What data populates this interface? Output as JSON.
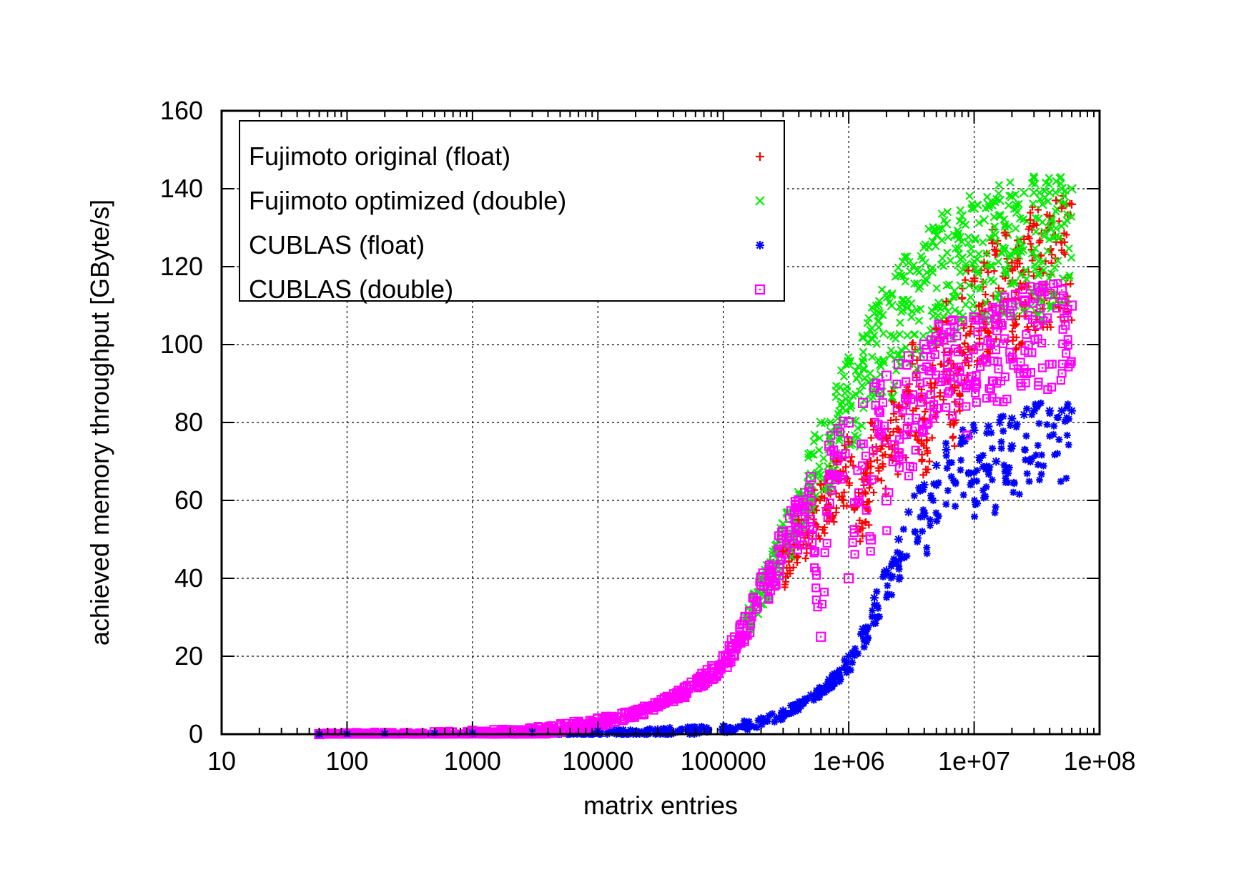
{
  "chart_data": {
    "type": "scatter",
    "title": "",
    "xlabel": "matrix entries",
    "ylabel": "achieved memory throughput [GByte/s]",
    "x_scale": "log",
    "xlim": [
      10,
      100000000
    ],
    "ylim": [
      0,
      160
    ],
    "x_ticks": [
      10,
      100,
      1000,
      10000,
      100000,
      1000000,
      10000000,
      100000000
    ],
    "x_tick_labels": [
      "10",
      "100",
      "1000",
      "10000",
      "100000",
      "1e+06",
      "1e+07",
      "1e+08"
    ],
    "y_ticks": [
      0,
      20,
      40,
      60,
      80,
      100,
      120,
      140,
      160
    ],
    "y_tick_labels": [
      "0",
      "20",
      "40",
      "60",
      "80",
      "100",
      "120",
      "140",
      "160"
    ],
    "grid": true,
    "legend_position": "top-left",
    "series": [
      {
        "name": "Fujimoto original (float)",
        "marker": "plus",
        "color": "#ff0000",
        "points": [
          [
            300000,
            47
          ],
          [
            400000,
            55
          ],
          [
            600000,
            64
          ],
          [
            800000,
            70
          ],
          [
            1000000,
            75
          ],
          [
            1200000,
            62
          ],
          [
            1500000,
            70
          ],
          [
            2000000,
            76
          ],
          [
            2500000,
            84
          ],
          [
            3000000,
            88
          ],
          [
            3500000,
            96
          ],
          [
            4000000,
            81
          ],
          [
            4500000,
            90
          ],
          [
            5000000,
            104
          ],
          [
            6000000,
            106
          ],
          [
            7000000,
            89
          ],
          [
            8000000,
            112
          ],
          [
            10000000,
            117
          ],
          [
            12000000,
            121
          ],
          [
            15000000,
            124
          ],
          [
            20000000,
            121
          ],
          [
            25000000,
            127
          ],
          [
            30000000,
            131
          ],
          [
            40000000,
            133
          ],
          [
            50000000,
            135
          ],
          [
            60000000,
            136
          ],
          [
            1500000,
            80
          ],
          [
            2200000,
            88
          ],
          [
            3200000,
            100
          ],
          [
            6000000,
            111
          ],
          [
            9000000,
            119
          ],
          [
            14000000,
            126
          ],
          [
            28000000,
            132
          ],
          [
            45000000,
            137
          ],
          [
            18000000,
            128
          ]
        ]
      },
      {
        "name": "Fujimoto optimized (double)",
        "marker": "cross",
        "color": "#00ee00",
        "points": [
          [
            150000,
            30
          ],
          [
            200000,
            40
          ],
          [
            250000,
            46
          ],
          [
            300000,
            54
          ],
          [
            400000,
            62
          ],
          [
            500000,
            72
          ],
          [
            600000,
            80
          ],
          [
            800000,
            88
          ],
          [
            1000000,
            95
          ],
          [
            1300000,
            102
          ],
          [
            1600000,
            108
          ],
          [
            2000000,
            113
          ],
          [
            2500000,
            118
          ],
          [
            3000000,
            121
          ],
          [
            4000000,
            125
          ],
          [
            5000000,
            128
          ],
          [
            6000000,
            131
          ],
          [
            8000000,
            133
          ],
          [
            10000000,
            135
          ],
          [
            13000000,
            136
          ],
          [
            16000000,
            137
          ],
          [
            20000000,
            138
          ],
          [
            25000000,
            139
          ],
          [
            30000000,
            139
          ],
          [
            40000000,
            139
          ],
          [
            50000000,
            140
          ],
          [
            60000000,
            140
          ],
          [
            700000,
            76
          ],
          [
            1200000,
            92
          ],
          [
            2200000,
            110
          ],
          [
            3500000,
            119
          ],
          [
            7000000,
            128
          ],
          [
            12000000,
            132
          ],
          [
            22000000,
            134
          ],
          [
            35000000,
            136
          ]
        ]
      },
      {
        "name": "CUBLAS (float)",
        "marker": "star",
        "color": "#0000ff",
        "points": [
          [
            60,
            0
          ],
          [
            100,
            0
          ],
          [
            200,
            0.1
          ],
          [
            500,
            0.2
          ],
          [
            1000,
            0.3
          ],
          [
            3000,
            0.5
          ],
          [
            10000,
            0.8
          ],
          [
            30000,
            1.2
          ],
          [
            100000,
            2
          ],
          [
            200000,
            4
          ],
          [
            300000,
            6
          ],
          [
            500000,
            10
          ],
          [
            700000,
            14
          ],
          [
            1000000,
            20
          ],
          [
            1300000,
            27
          ],
          [
            1600000,
            35
          ],
          [
            2000000,
            42
          ],
          [
            2500000,
            50
          ],
          [
            3000000,
            57
          ],
          [
            4000000,
            64
          ],
          [
            5000000,
            69
          ],
          [
            6000000,
            73
          ],
          [
            8000000,
            76
          ],
          [
            10000000,
            78
          ],
          [
            13000000,
            79
          ],
          [
            16000000,
            80
          ],
          [
            20000000,
            81
          ],
          [
            25000000,
            82
          ],
          [
            30000000,
            83
          ],
          [
            40000000,
            83
          ],
          [
            50000000,
            83
          ],
          [
            60000000,
            83
          ],
          [
            4000000,
            56
          ],
          [
            10000000,
            65
          ],
          [
            15000000,
            70
          ],
          [
            20000000,
            74
          ]
        ]
      },
      {
        "name": "CUBLAS (double)",
        "marker": "box",
        "color": "#ff00ff",
        "points": [
          [
            60,
            0
          ],
          [
            100,
            0.2
          ],
          [
            200,
            0.3
          ],
          [
            500,
            0.5
          ],
          [
            1000,
            0.8
          ],
          [
            3000,
            1.5
          ],
          [
            10000,
            4
          ],
          [
            20000,
            6
          ],
          [
            50000,
            12
          ],
          [
            100000,
            20
          ],
          [
            150000,
            30
          ],
          [
            200000,
            40
          ],
          [
            300000,
            52
          ],
          [
            400000,
            60
          ],
          [
            500000,
            66
          ],
          [
            700000,
            74
          ],
          [
            1000000,
            80
          ],
          [
            1300000,
            85
          ],
          [
            1600000,
            89
          ],
          [
            2000000,
            92
          ],
          [
            2500000,
            95
          ],
          [
            3000000,
            97
          ],
          [
            4000000,
            100
          ],
          [
            5000000,
            102
          ],
          [
            6000000,
            104
          ],
          [
            8000000,
            106
          ],
          [
            10000000,
            107
          ],
          [
            13000000,
            108
          ],
          [
            16000000,
            109
          ],
          [
            20000000,
            110
          ],
          [
            25000000,
            111
          ],
          [
            30000000,
            112
          ],
          [
            40000000,
            113
          ],
          [
            50000000,
            114
          ],
          [
            60000000,
            110
          ],
          [
            1000000,
            40
          ],
          [
            1500000,
            50
          ],
          [
            2000000,
            60
          ],
          [
            2500000,
            72
          ],
          [
            3000000,
            81
          ],
          [
            8000000,
            91
          ],
          [
            600000,
            25
          ]
        ]
      }
    ]
  }
}
